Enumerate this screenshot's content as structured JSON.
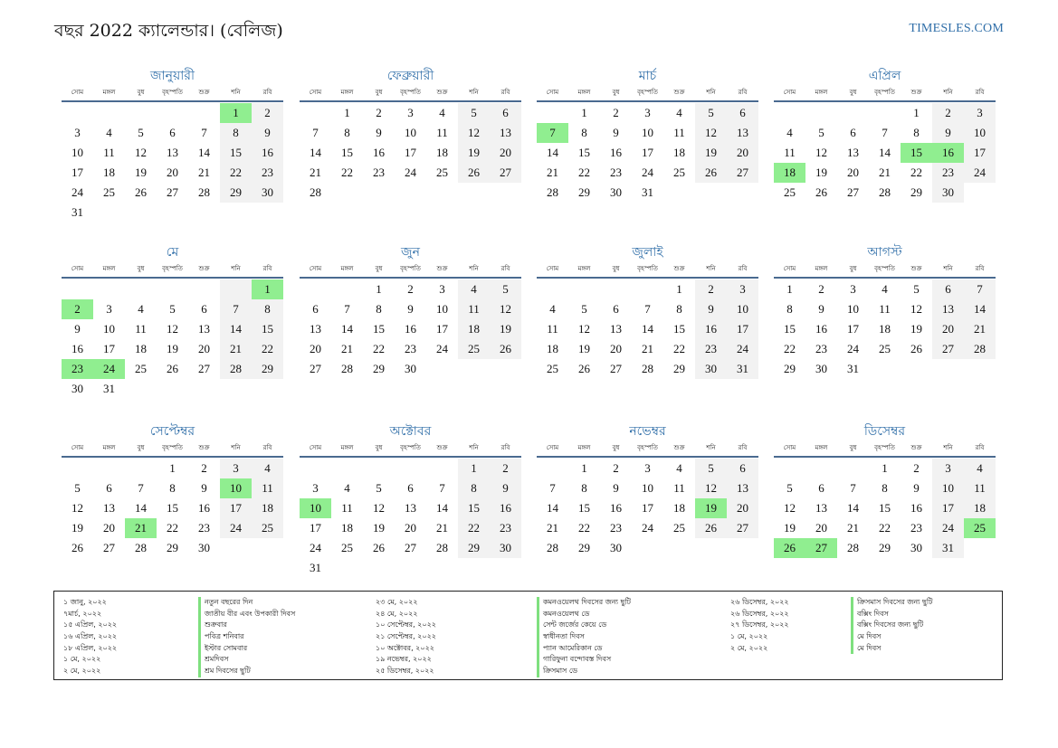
{
  "header": {
    "title": "বছর 2022 ক্যালেন্ডার। (বেলিজ)",
    "brand": "TIMESLES.COM"
  },
  "weekdays": [
    "সোম",
    "মঙ্গল",
    "বুধ",
    "বৃহস্পতি",
    "শুক্র",
    "শনি",
    "রবি"
  ],
  "months": [
    {
      "name": "জানুয়ারী",
      "offset": 5,
      "days": 31,
      "holidays": [
        1
      ]
    },
    {
      "name": "ফেব্রুয়ারী",
      "offset": 1,
      "days": 28,
      "holidays": []
    },
    {
      "name": "মার্চ",
      "offset": 1,
      "days": 31,
      "holidays": [
        7
      ]
    },
    {
      "name": "এপ্রিল",
      "offset": 4,
      "days": 30,
      "holidays": [
        15,
        16,
        18
      ]
    },
    {
      "name": "মে",
      "offset": 6,
      "days": 31,
      "holidays": [
        1,
        2,
        23,
        24
      ]
    },
    {
      "name": "জুন",
      "offset": 2,
      "days": 30,
      "holidays": []
    },
    {
      "name": "জুলাই",
      "offset": 4,
      "days": 31,
      "holidays": []
    },
    {
      "name": "আগস্ট",
      "offset": 0,
      "days": 31,
      "holidays": []
    },
    {
      "name": "সেপ্টেম্বর",
      "offset": 3,
      "days": 30,
      "holidays": [
        10,
        21
      ]
    },
    {
      "name": "অক্টোবর",
      "offset": 5,
      "days": 31,
      "holidays": [
        10
      ]
    },
    {
      "name": "নভেম্বর",
      "offset": 1,
      "days": 30,
      "holidays": [
        19
      ]
    },
    {
      "name": "ডিসেম্বর",
      "offset": 3,
      "days": 31,
      "holidays": [
        25,
        26,
        27
      ]
    }
  ],
  "legend": {
    "col1_dates": [
      "১ জানু, ২০২২",
      "৭মার্চ, ২০২২",
      "১৫ এপ্রিল, ২০২২",
      "১৬ এপ্রিল, ২০২২",
      "১৮ এপ্রিল, ২০২২",
      "১ মে, ২০২২",
      "২ মে, ২০২২"
    ],
    "col1_names": [
      "নতুন বছরের দিন",
      "জাতীয় বীর এবং উপকারী দিবস",
      "শুক্রবার",
      "পবিত্র শনিবার",
      "ইস্টার সোমবার",
      "শ্রমদিবস",
      "শ্রম দিবসের ছুটি"
    ],
    "col2_dates": [
      "২৩ মে, ২০২২",
      "২৪ মে, ২০২২",
      "১০ সেপ্টেম্বর, ২০২২",
      "২১ সেপ্টেম্বর, ২০২২",
      "১০ অক্টোবর, ২০২২",
      "১৯ নভেম্বর, ২০২২",
      "২৫ ডিসেম্বর, ২০২২"
    ],
    "col2_names": [
      "কমনওয়েলথ দিবসের জন্য ছুটি",
      "কমনওয়েলথ ডে",
      "সেন্ট জর্জের কেয়ে ডে",
      "স্বাধীনতা দিবস",
      "প্যান আমেরিকান ডে",
      "গারিফুনা বন্দোবস্ত দিবস",
      "ক্রিসমাস ডে"
    ],
    "col3_dates": [
      "২৬ ডিসেম্বর, ২০২২",
      "২৬ ডিসেম্বর, ২০২২",
      "২৭ ডিসেম্বর, ২০২২",
      "১ মে, ২০২২",
      "২ মে, ২০২২"
    ],
    "col3_names": [
      "ক্রিসমাস দিবসের জন্য ছুটি",
      "বক্সিং দিবস",
      "বক্সিং দিবসের জন্য ছুটি",
      "মে দিবস",
      "মে দিবস"
    ]
  }
}
